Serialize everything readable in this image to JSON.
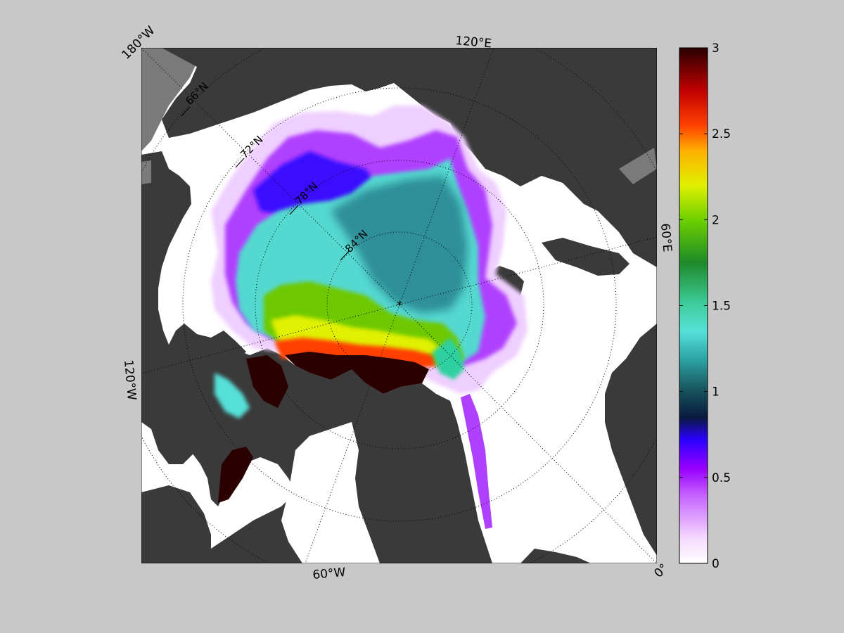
{
  "map": {
    "projection": "north-polar-stereographic",
    "longitude_labels": [
      "180°W",
      "120°E",
      "60°E",
      "0°",
      "60°W",
      "120°W"
    ],
    "latitude_labels": [
      "66°N",
      "72°N",
      "78°N",
      "84°N"
    ],
    "pole_marker": "*",
    "colors": {
      "background": "#c8c8c8",
      "land": "#3a3a3a",
      "no_data": "#7a7a7a",
      "open_water": "#ffffff",
      "frame": "#000000"
    }
  },
  "colorbar": {
    "min": 0,
    "max": 3,
    "tick_labels": [
      "3",
      "2.5",
      "2",
      "1.5",
      "1",
      "0.5",
      "0"
    ],
    "colormap_stops": [
      {
        "v": 0.0,
        "c": "#ffffff"
      },
      {
        "v": 0.15,
        "c": "#f5d8ff"
      },
      {
        "v": 0.4,
        "c": "#c560ff"
      },
      {
        "v": 0.55,
        "c": "#9a00ff"
      },
      {
        "v": 0.72,
        "c": "#2a00ff"
      },
      {
        "v": 0.85,
        "c": "#0a1a40"
      },
      {
        "v": 1.0,
        "c": "#17505a"
      },
      {
        "v": 1.2,
        "c": "#2fa8a8"
      },
      {
        "v": 1.35,
        "c": "#55e0d8"
      },
      {
        "v": 1.5,
        "c": "#3fcfa0"
      },
      {
        "v": 1.75,
        "c": "#1e8a2a"
      },
      {
        "v": 2.0,
        "c": "#6ed000"
      },
      {
        "v": 2.2,
        "c": "#e0f000"
      },
      {
        "v": 2.4,
        "c": "#ffb000"
      },
      {
        "v": 2.55,
        "c": "#ff4000"
      },
      {
        "v": 2.75,
        "c": "#c00000"
      },
      {
        "v": 3.0,
        "c": "#2a0000"
      }
    ]
  }
}
